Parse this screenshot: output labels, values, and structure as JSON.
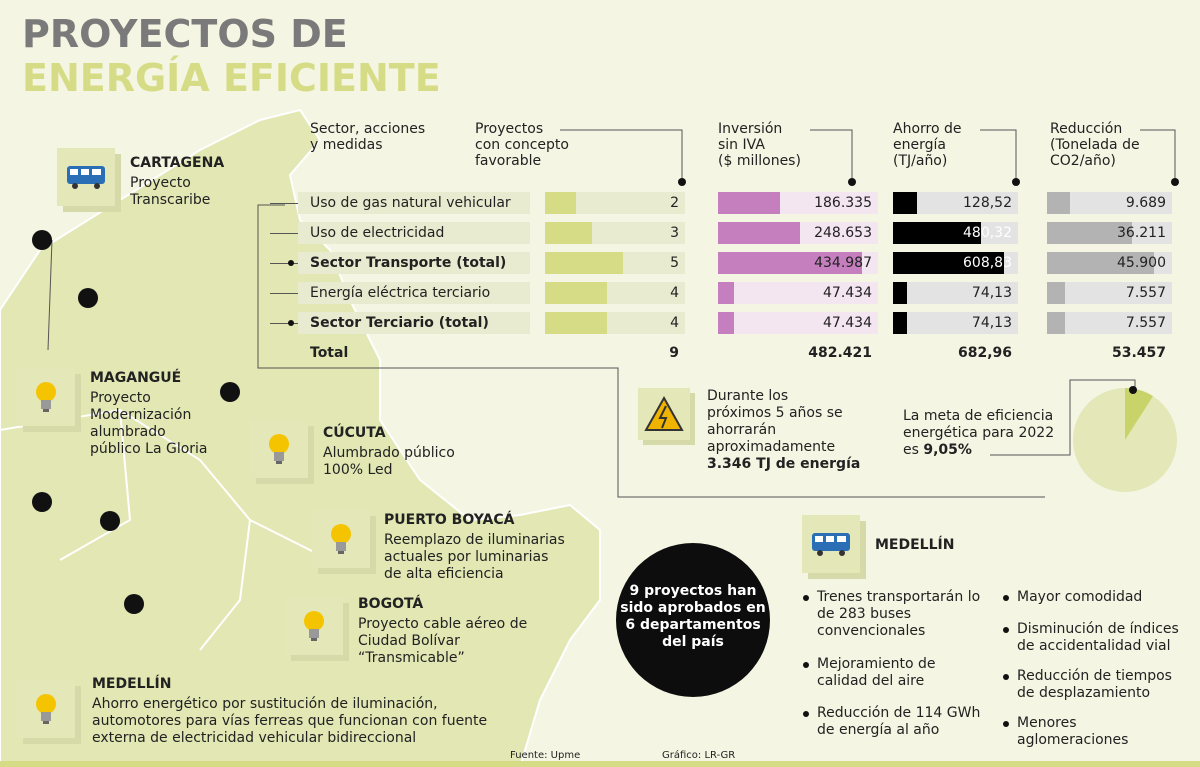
{
  "header": {
    "title_line1": "PROYECTOS DE",
    "title_line2": "ENERGÍA EFICIENTE"
  },
  "table": {
    "columns": [
      "Sector, acciones\ny medidas",
      "Proyectos\ncon concepto\nfavorable",
      "Inversión\nsin IVA\n($ millones)",
      "Ahorro de\nenergía\n(TJ/año)",
      "Reducción\n(Tonelada de\nCO2/año)"
    ],
    "rows": [
      {
        "label": "Uso de gas natural vehicular",
        "subtotal": false,
        "projects": 2,
        "investment": 186335,
        "investment_label": "186.335",
        "energy": 128.52,
        "energy_label": "128,52",
        "reduction": 9689,
        "reduction_label": "9.689"
      },
      {
        "label": "Uso de electricidad",
        "subtotal": false,
        "projects": 3,
        "investment": 248653,
        "investment_label": "248.653",
        "energy": 480.32,
        "energy_label": "480,32",
        "reduction": 36211,
        "reduction_label": "36.211"
      },
      {
        "label": "Sector Transporte (total)",
        "subtotal": true,
        "projects": 5,
        "investment": 434987,
        "investment_label": "434.987",
        "energy": 608.83,
        "energy_label": "608,83",
        "reduction": 45900,
        "reduction_label": "45.900"
      },
      {
        "label": "Energía eléctrica terciario",
        "subtotal": false,
        "projects": 4,
        "investment": 47434,
        "investment_label": "47.434",
        "energy": 74.13,
        "energy_label": "74,13",
        "reduction": 7557,
        "reduction_label": "7.557"
      },
      {
        "label": "Sector Terciario (total)",
        "subtotal": true,
        "projects": 4,
        "investment": 47434,
        "investment_label": "47.434",
        "energy": 74.13,
        "energy_label": "74,13",
        "reduction": 7557,
        "reduction_label": "7.557"
      }
    ],
    "total": {
      "label": "Total",
      "projects": 9,
      "investment": 482421,
      "investment_label": "482.421",
      "energy": 682.96,
      "energy_label": "682,96",
      "reduction": 53457,
      "reduction_label": "53.457"
    }
  },
  "savings_note": {
    "text": "Durante los\npróximos 5 años se\nahorrarán\naproximadamente",
    "highlight": "3.346 TJ de energía"
  },
  "goal": {
    "text": "La meta de eficiencia\nenergética para 2022\nes ",
    "value": 9.05,
    "value_label": "9,05%"
  },
  "approved": "9 proyectos han\nsido aprobados en\n6 departamentos\ndel país",
  "cities": [
    {
      "name": "CARTAGENA",
      "description": "Proyecto\nTranscaribe",
      "icon": "bus"
    },
    {
      "name": "MAGANGUÉ",
      "description": "Proyecto\nModernización\nalumbrado\npúblico La Gloria",
      "icon": "bulb"
    },
    {
      "name": "CÚCUTA",
      "description": "Alumbrado público\n100% Led",
      "icon": "bulb"
    },
    {
      "name": "PUERTO BOYACÁ",
      "description": "Reemplazo de iluminarias\nactuales por luminarias\nde alta eficiencia",
      "icon": "bulb"
    },
    {
      "name": "BOGOTÁ",
      "description": "Proyecto cable aéreo de\nCiudad Bolívar\n“Transmicable”",
      "icon": "bulb"
    },
    {
      "name": "MEDELLÍN",
      "description": "Ahorro energético por sustitución de iluminación,\nautomotores para vías ferreas que funcionan con fuente\nexterna de electricidad vehicular bidireccional",
      "icon": "bulb"
    }
  ],
  "medellin": {
    "title": "MEDELLÍN",
    "benefits": [
      "Trenes transportarán lo\nde 283 buses\nconvencionales",
      "Mejoramiento de\ncalidad del aire",
      "Reducción de 114 GWh\nde energía al año",
      "Mayor comodidad",
      "Disminución de índices\nde accidentalidad vial",
      "Reducción de tiempos\nde desplazamiento",
      "Menores\naglomeraciones"
    ]
  },
  "footer": {
    "source": "Fuente: Upme",
    "credit": "Gráfico: LR-GR"
  }
}
